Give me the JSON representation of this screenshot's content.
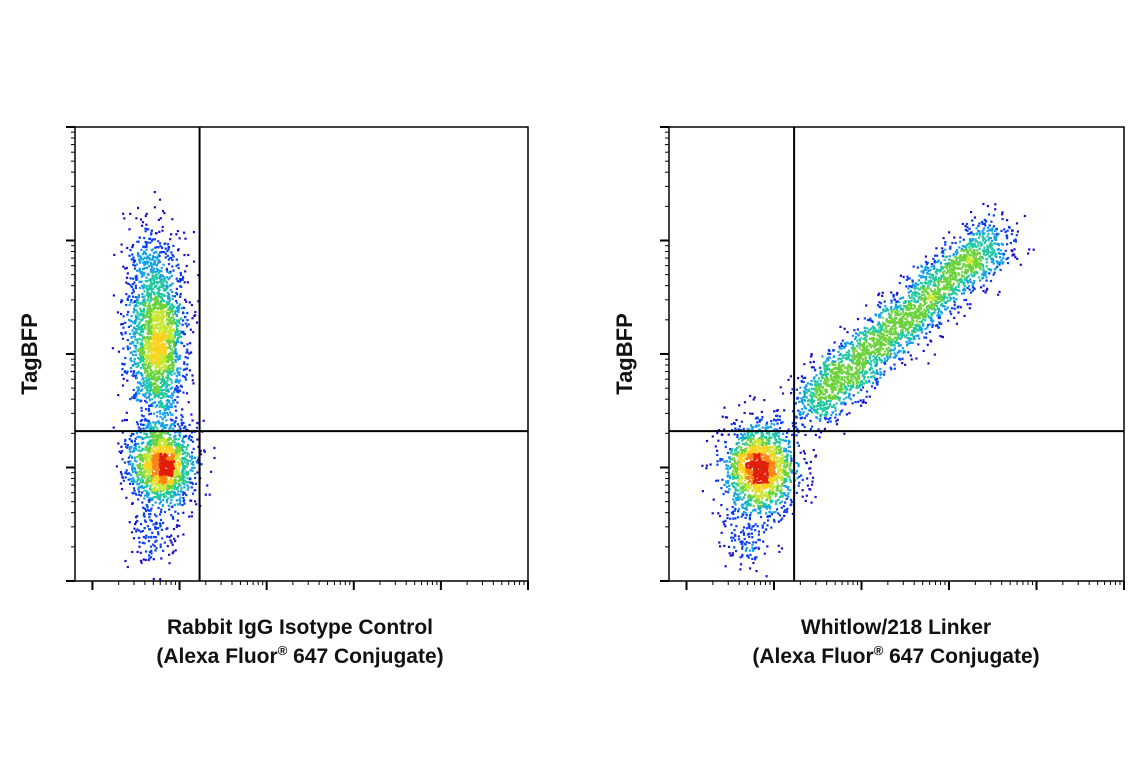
{
  "colors": {
    "density_ramp": [
      "#1a10c8",
      "#0a3cf0",
      "#12a0e6",
      "#1ec8a0",
      "#6cd23c",
      "#c8e632",
      "#ffd21e",
      "#ff8214",
      "#e11e0a"
    ],
    "gate_lines": "#000000",
    "axes": "#000000"
  },
  "chart_data": [
    {
      "type": "scatter",
      "subtype": "density-pseudocolor flow cytometry dot plot",
      "xlabel_line1": "Rabbit IgG Isotype Control",
      "xlabel_line2_prefix": "(Alexa Fluor",
      "xlabel_line2_reg": "®",
      "xlabel_line2_suffix": " 647 Conjugate)",
      "ylabel": "TagBFP",
      "x_scale": "log",
      "y_scale": "log",
      "xlim": [
        0,
        1
      ],
      "ylim": [
        0,
        1
      ],
      "tick_labels_shown": false,
      "grid": false,
      "legend": "none",
      "quadrant_gate": {
        "x": 0.275,
        "y": 0.33
      },
      "populations": [
        {
          "name": "double-negative cluster",
          "center": [
            0.19,
            0.26
          ],
          "spread": [
            0.035,
            0.045
          ],
          "count": 1500
        },
        {
          "name": "TagBFP-positive cluster",
          "center": [
            0.18,
            0.53
          ],
          "spread": [
            0.032,
            0.09
          ],
          "count": 1800
        },
        {
          "name": "upper tail",
          "center": [
            0.16,
            0.7
          ],
          "spread": [
            0.03,
            0.06
          ],
          "count": 250
        },
        {
          "name": "low scatter",
          "center": [
            0.17,
            0.1
          ],
          "spread": [
            0.025,
            0.04
          ],
          "count": 120
        }
      ]
    },
    {
      "type": "scatter",
      "subtype": "density-pseudocolor flow cytometry dot plot",
      "xlabel_line1": "Whitlow/218 Linker",
      "xlabel_line2_prefix": "(Alexa Fluor",
      "xlabel_line2_reg": "®",
      "xlabel_line2_suffix": " 647 Conjugate)",
      "ylabel": "TagBFP",
      "x_scale": "log",
      "y_scale": "log",
      "xlim": [
        0,
        1
      ],
      "ylim": [
        0,
        1
      ],
      "tick_labels_shown": false,
      "grid": false,
      "legend": "none",
      "quadrant_gate": {
        "x": 0.275,
        "y": 0.33
      },
      "populations": [
        {
          "name": "double-negative cluster",
          "center": [
            0.2,
            0.25
          ],
          "spread": [
            0.04,
            0.05
          ],
          "count": 1600
        },
        {
          "name": "double-positive diagonal",
          "from": [
            0.3,
            0.38
          ],
          "to": [
            0.72,
            0.76
          ],
          "width": 0.03,
          "count": 2600
        },
        {
          "name": "low scatter",
          "center": [
            0.17,
            0.1
          ],
          "spread": [
            0.025,
            0.04
          ],
          "count": 120
        }
      ]
    }
  ]
}
